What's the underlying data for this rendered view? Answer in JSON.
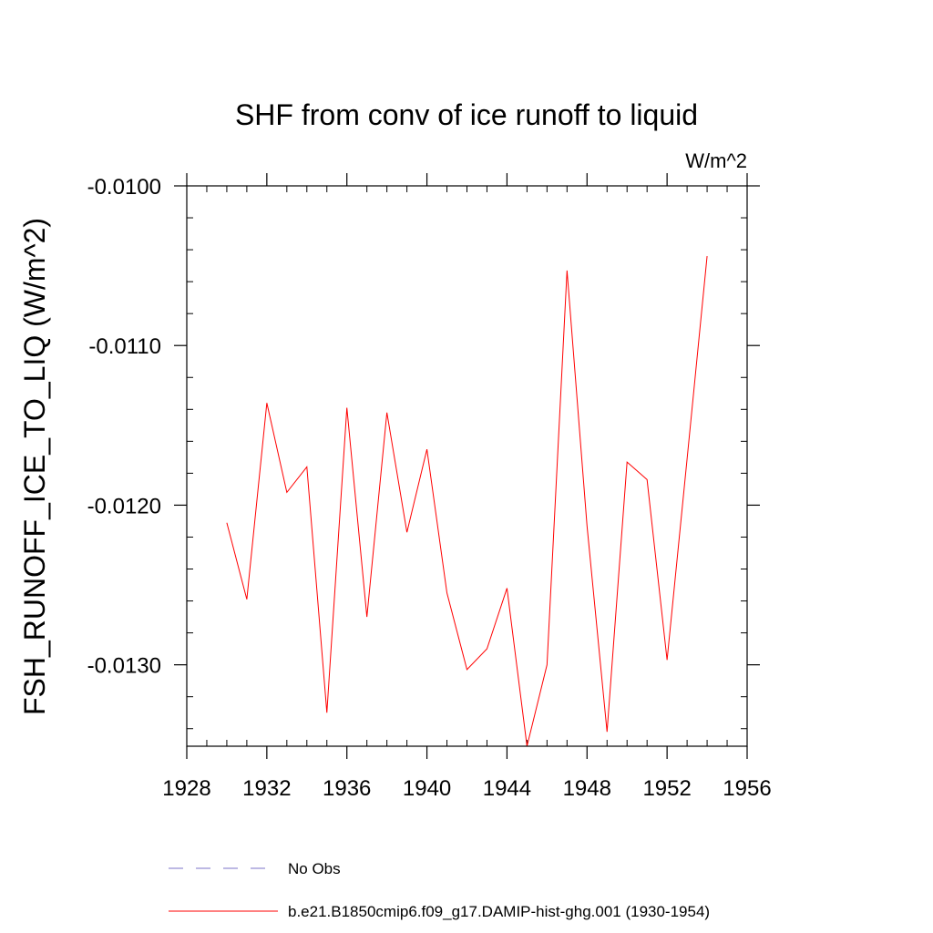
{
  "chart_data": {
    "type": "line",
    "title": "SHF from conv of ice runoff to liquid",
    "units": "W/m^2",
    "ylabel": "FSH_RUNOFF_ICE_TO_LIQ  (W/m^2)",
    "xlabel": "",
    "xlim": [
      1928,
      1956
    ],
    "ylim": [
      -0.01351,
      -0.01
    ],
    "x_major_ticks": [
      1928,
      1932,
      1936,
      1940,
      1944,
      1948,
      1952,
      1956
    ],
    "x_tick_labels": [
      "1928",
      "1932",
      "1936",
      "1940",
      "1944",
      "1948",
      "1952",
      "1956"
    ],
    "y_major_ticks": [
      -0.01,
      -0.011,
      -0.012,
      -0.013
    ],
    "y_tick_labels": [
      "-0.0100",
      "-0.0110",
      "-0.0120",
      "-0.0130"
    ],
    "x_minor_step": 1,
    "y_minor_step": 0.0002,
    "series": [
      {
        "name": "No Obs",
        "color": "#7b73c9",
        "dash": "dashed",
        "x": [],
        "values": []
      },
      {
        "name": "b.e21.B1850cmip6.f09_g17.DAMIP-hist-ghg.001 (1930-1954)",
        "color": "#ff0000",
        "dash": "solid",
        "x": [
          1930,
          1931,
          1932,
          1933,
          1934,
          1935,
          1936,
          1937,
          1938,
          1939,
          1940,
          1941,
          1942,
          1943,
          1944,
          1945,
          1946,
          1947,
          1948,
          1949,
          1950,
          1951,
          1952,
          1953,
          1954
        ],
        "values": [
          -0.01211,
          -0.01259,
          -0.01136,
          -0.01192,
          -0.01176,
          -0.0133,
          -0.01139,
          -0.0127,
          -0.01142,
          -0.01217,
          -0.01165,
          -0.01255,
          -0.01303,
          -0.0129,
          -0.01252,
          -0.01351,
          -0.013,
          -0.01053,
          -0.01213,
          -0.01342,
          -0.01173,
          -0.01184,
          -0.01297,
          -0.01171,
          -0.01044
        ]
      }
    ]
  }
}
